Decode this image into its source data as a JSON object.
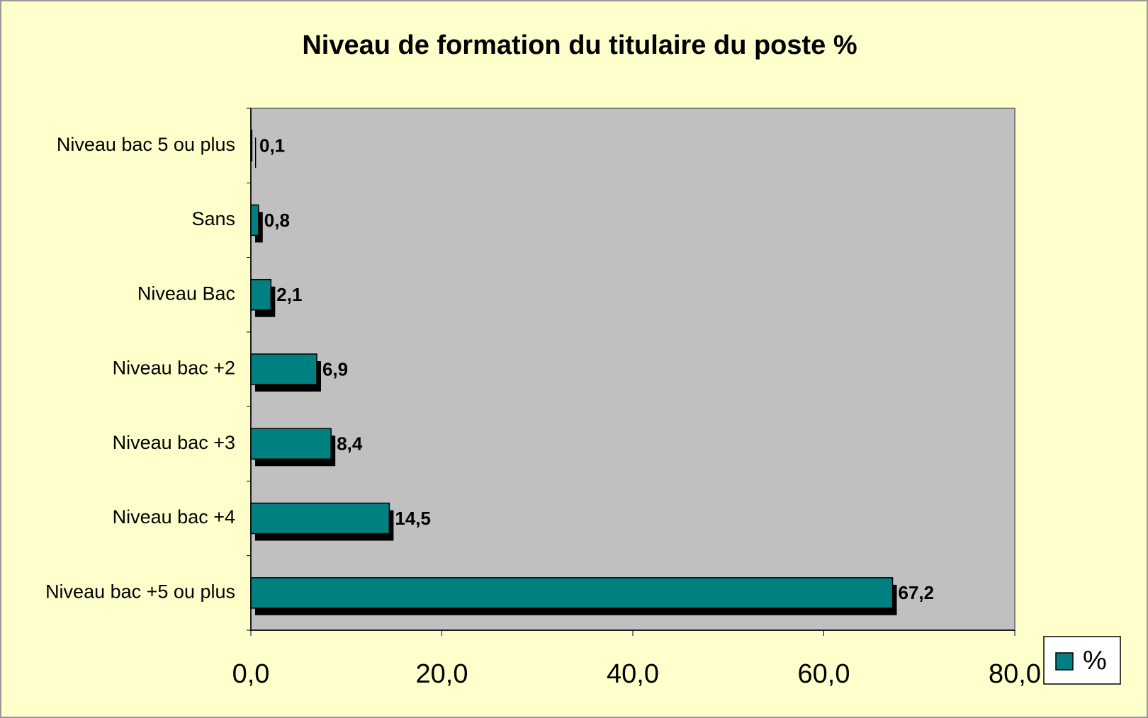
{
  "chart_data": {
    "type": "bar",
    "orientation": "horizontal",
    "title": "Niveau de formation du titulaire du poste %",
    "categories": [
      "Niveau bac 5 ou plus",
      "Sans",
      "Niveau Bac",
      "Niveau bac +2",
      "Niveau bac +3",
      "Niveau bac +4",
      "Niveau bac +5 ou plus"
    ],
    "series": [
      {
        "name": "%",
        "color": "#008080",
        "values": [
          0.1,
          0.8,
          2.1,
          6.9,
          8.4,
          14.5,
          67.2
        ],
        "value_labels": [
          "0,1",
          "0,8",
          "2,1",
          "6,9",
          "8,4",
          "14,5",
          "67,2"
        ]
      }
    ],
    "xlim": [
      0,
      80
    ],
    "xticks": [
      {
        "value": 0,
        "label": "0,0"
      },
      {
        "value": 20,
        "label": "20,0"
      },
      {
        "value": 40,
        "label": "40,0"
      },
      {
        "value": 60,
        "label": "60,0"
      },
      {
        "value": 80,
        "label": "80,0"
      }
    ],
    "legend": "bottom-right"
  }
}
